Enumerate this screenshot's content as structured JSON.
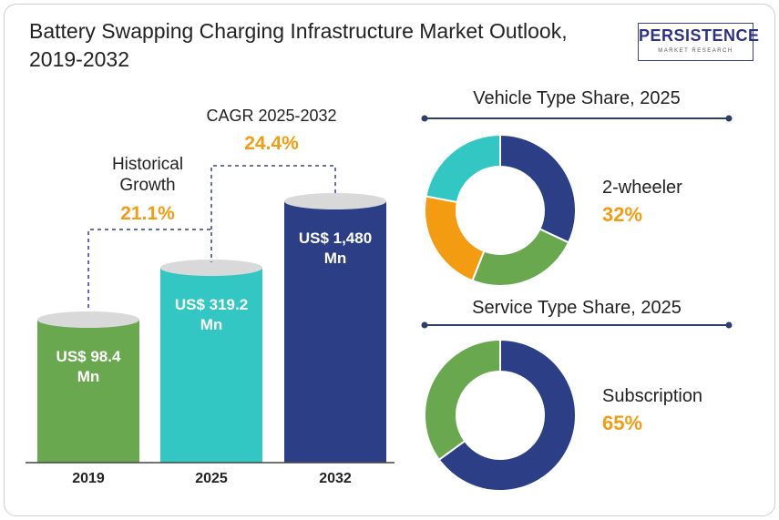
{
  "title": "Battery Swapping Charging Infrastructure Market Outlook, 2019-2032",
  "logo": {
    "name": "PERSISTENCE",
    "tagline": "MARKET RESEARCH"
  },
  "colors": {
    "green": "#6aa84f",
    "teal": "#33c7c4",
    "navy": "#2c3e86",
    "orange": "#f39c12",
    "accent_text": "#f39c12",
    "cap": "#d9d9d9"
  },
  "annotations": {
    "historical_label": "Historical",
    "historical_label2": "Growth",
    "historical_value": "21.1%",
    "cagr_label": "CAGR 2025-2032",
    "cagr_value": "24.4%"
  },
  "chart_data": [
    {
      "type": "bar",
      "categories": [
        "2019",
        "2025",
        "2032"
      ],
      "values": [
        98.4,
        319.2,
        1480
      ],
      "value_labels": [
        [
          "US$ 98.4",
          "Mn"
        ],
        [
          "US$ 319.2",
          "Mn"
        ],
        [
          "US$ 1,480",
          "Mn"
        ]
      ],
      "colors": [
        "#6aa84f",
        "#33c7c4",
        "#2c3e86"
      ]
    },
    {
      "type": "pie",
      "title": "Vehicle Type Share, 2025",
      "slices": [
        {
          "label": "2-wheeler",
          "value": 32,
          "color": "#2c3e86"
        },
        {
          "label": "",
          "value": 24,
          "color": "#6aa84f"
        },
        {
          "label": "",
          "value": 22,
          "color": "#f39c12"
        },
        {
          "label": "",
          "value": 22,
          "color": "#33c7c4"
        }
      ],
      "callout": {
        "label": "2-wheeler",
        "value": "32%"
      }
    },
    {
      "type": "pie",
      "title": "Service Type Share, 2025",
      "slices": [
        {
          "label": "Subscription",
          "value": 65,
          "color": "#2c3e86"
        },
        {
          "label": "",
          "value": 35,
          "color": "#6aa84f"
        }
      ],
      "callout": {
        "label": "Subscription",
        "value": "65%"
      }
    }
  ]
}
